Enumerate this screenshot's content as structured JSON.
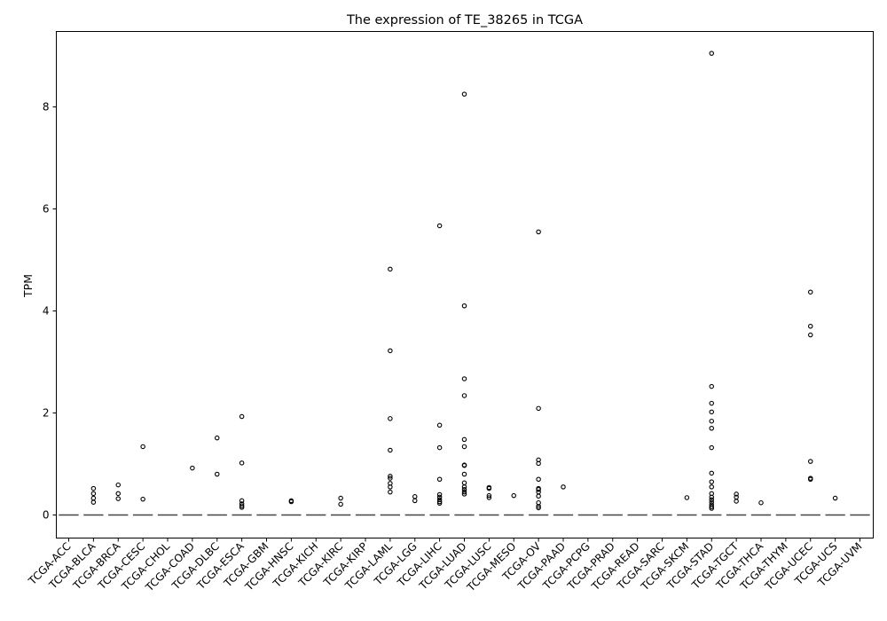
{
  "chart_data": {
    "type": "box",
    "title": "The expression of TE_38265 in TCGA",
    "xlabel": "",
    "ylabel": "TPM",
    "ylim": [
      -0.45,
      9.5
    ],
    "yticks": [
      0,
      2,
      4,
      6,
      8
    ],
    "grid": false,
    "categories": [
      "TCGA-ACC",
      "TCGA-BLCA",
      "TCGA-BRCA",
      "TCGA-CESC",
      "TCGA-CHOL",
      "TCGA-COAD",
      "TCGA-DLBC",
      "TCGA-ESCA",
      "TCGA-GBM",
      "TCGA-HNSC",
      "TCGA-KICH",
      "TCGA-KIRC",
      "TCGA-KIRP",
      "TCGA-LAML",
      "TCGA-LGG",
      "TCGA-LIHC",
      "TCGA-LUAD",
      "TCGA-LUSC",
      "TCGA-MESO",
      "TCGA-OV",
      "TCGA-PAAD",
      "TCGA-PCPG",
      "TCGA-PRAD",
      "TCGA-READ",
      "TCGA-SARC",
      "TCGA-SKCM",
      "TCGA-STAD",
      "TCGA-TGCT",
      "TCGA-THCA",
      "TCGA-THYM",
      "TCGA-UCEC",
      "TCGA-UCS",
      "TCGA-UVM"
    ],
    "median": [
      0,
      0,
      0,
      0,
      0,
      0,
      0,
      0,
      0,
      0,
      0,
      0,
      0,
      0,
      0,
      0,
      0,
      0,
      0,
      0,
      0,
      0,
      0,
      0,
      0,
      0,
      0,
      0,
      0,
      0,
      0,
      0,
      0
    ],
    "outliers": [
      [],
      [
        0.52,
        0.42,
        0.33,
        0.25
      ],
      [
        0.59,
        0.42,
        0.32
      ],
      [
        1.34,
        0.31
      ],
      [],
      [
        0.92
      ],
      [
        1.51,
        0.8
      ],
      [
        1.93,
        1.02,
        0.28,
        0.22,
        0.18,
        0.15
      ],
      [],
      [
        0.28,
        0.26
      ],
      [],
      [
        0.33,
        0.21
      ],
      [],
      [
        4.82,
        3.22,
        1.89,
        1.27,
        0.76,
        0.72,
        0.62,
        0.55,
        0.45
      ],
      [
        0.36,
        0.28
      ],
      [
        5.67,
        1.76,
        1.32,
        0.7,
        0.4,
        0.35,
        0.3,
        0.26,
        0.23
      ],
      [
        8.25,
        4.1,
        2.67,
        2.34,
        1.48,
        1.34,
        0.98,
        0.97,
        0.8,
        0.63,
        0.55,
        0.5,
        0.45,
        0.41
      ],
      [
        0.54,
        0.52,
        0.38,
        0.34
      ],
      [
        0.38
      ],
      [
        5.55,
        2.09,
        1.08,
        1.01,
        0.7,
        0.52,
        0.5,
        0.45,
        0.37,
        0.24,
        0.17,
        0.14
      ],
      [
        0.55
      ],
      [],
      [],
      [],
      [],
      [
        0.34
      ],
      [
        9.05,
        2.52,
        2.19,
        2.02,
        1.84,
        1.7,
        1.32,
        0.82,
        0.65,
        0.55,
        0.42,
        0.35,
        0.3,
        0.25,
        0.2,
        0.16,
        0.13
      ],
      [
        0.41,
        0.35,
        0.27
      ],
      [
        0.24
      ],
      [],
      [
        4.37,
        3.7,
        3.53,
        1.05,
        0.72,
        0.7
      ],
      [
        0.33
      ],
      []
    ],
    "colors": {
      "median": "#444444",
      "box": "#000000",
      "outlier": "#000000"
    }
  }
}
